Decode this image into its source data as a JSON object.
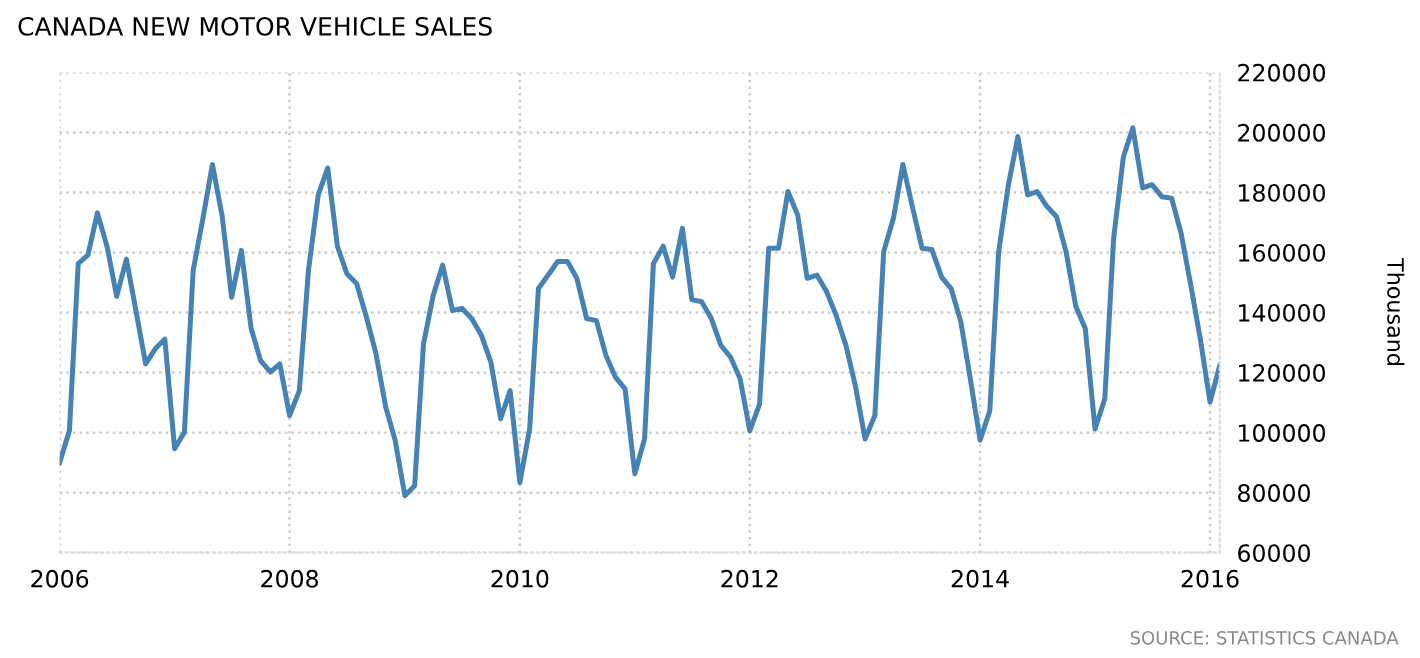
{
  "chart_data": {
    "type": "line",
    "title": "CANADA NEW MOTOR VEHICLE SALES",
    "ylabel": "Thousand",
    "annotations": [
      "SOURCE: STATISTICS CANADA"
    ],
    "x": [
      "2006-01",
      "2006-02",
      "2006-03",
      "2006-04",
      "2006-05",
      "2006-06",
      "2006-07",
      "2006-08",
      "2006-09",
      "2006-10",
      "2006-11",
      "2006-12",
      "2007-01",
      "2007-02",
      "2007-03",
      "2007-04",
      "2007-05",
      "2007-06",
      "2007-07",
      "2007-08",
      "2007-09",
      "2007-10",
      "2007-11",
      "2007-12",
      "2008-01",
      "2008-02",
      "2008-03",
      "2008-04",
      "2008-05",
      "2008-06",
      "2008-07",
      "2008-08",
      "2008-09",
      "2008-10",
      "2008-11",
      "2008-12",
      "2009-01",
      "2009-02",
      "2009-03",
      "2009-04",
      "2009-05",
      "2009-06",
      "2009-07",
      "2009-08",
      "2009-09",
      "2009-10",
      "2009-11",
      "2009-12",
      "2010-01",
      "2010-02",
      "2010-03",
      "2010-04",
      "2010-05",
      "2010-06",
      "2010-07",
      "2010-08",
      "2010-09",
      "2010-10",
      "2010-11",
      "2010-12",
      "2011-01",
      "2011-02",
      "2011-03",
      "2011-04",
      "2011-05",
      "2011-06",
      "2011-07",
      "2011-08",
      "2011-09",
      "2011-10",
      "2011-11",
      "2011-12",
      "2012-01",
      "2012-02",
      "2012-03",
      "2012-04",
      "2012-05",
      "2012-06",
      "2012-07",
      "2012-08",
      "2012-09",
      "2012-10",
      "2012-11",
      "2012-12",
      "2013-01",
      "2013-02",
      "2013-03",
      "2013-04",
      "2013-05",
      "2013-06",
      "2013-07",
      "2013-08",
      "2013-09",
      "2013-10",
      "2013-11",
      "2013-12",
      "2014-01",
      "2014-02",
      "2014-03",
      "2014-04",
      "2014-05",
      "2014-06",
      "2014-07",
      "2014-08",
      "2014-09",
      "2014-10",
      "2014-11",
      "2014-12",
      "2015-01",
      "2015-02",
      "2015-03",
      "2015-04",
      "2015-05",
      "2015-06",
      "2015-07",
      "2015-08",
      "2015-09",
      "2015-10",
      "2015-11",
      "2015-12",
      "2016-01",
      "2016-02"
    ],
    "series": [
      {
        "color": "#4682b4",
        "values": [
          90000,
          100600,
          156300,
          159200,
          173200,
          161800,
          145400,
          157800,
          140200,
          122900,
          128000,
          131100,
          94600,
          100100,
          154100,
          171400,
          189300,
          172100,
          145100,
          160700,
          134700,
          124000,
          120200,
          122900,
          105700,
          114000,
          154100,
          179200,
          188100,
          162000,
          152900,
          149600,
          138500,
          126400,
          108600,
          97500,
          79000,
          82300,
          129500,
          145800,
          155800,
          140700,
          141400,
          138000,
          132400,
          123500,
          104600,
          114000,
          83400,
          101200,
          148000,
          152500,
          157000,
          157000,
          151400,
          138000,
          137300,
          125800,
          118400,
          114600,
          86300,
          97900,
          156300,
          162100,
          151800,
          168100,
          144300,
          143600,
          138000,
          129100,
          125100,
          118000,
          100600,
          109500,
          161400,
          161400,
          180300,
          172500,
          151400,
          152500,
          146900,
          139100,
          129100,
          115700,
          97900,
          105700,
          160300,
          171400,
          189300,
          174800,
          161400,
          161000,
          151800,
          148000,
          136900,
          118000,
          97500,
          107300,
          160300,
          182600,
          198600,
          179200,
          180300,
          175400,
          171900,
          160300,
          142000,
          134700,
          101200,
          111300,
          164700,
          191900,
          201500,
          181500,
          182600,
          178600,
          178100,
          166500,
          149100,
          131300,
          110200,
          122400
        ]
      }
    ],
    "xlim": [
      "2006-01",
      "2016-02"
    ],
    "xticks": [
      "2006",
      "2008",
      "2010",
      "2012",
      "2014",
      "2016"
    ],
    "ylim": [
      60000,
      220000
    ],
    "yticks": [
      60000,
      80000,
      100000,
      120000,
      140000,
      160000,
      180000,
      200000,
      220000
    ],
    "grid": true,
    "line_style": "solid",
    "marker": "none"
  }
}
